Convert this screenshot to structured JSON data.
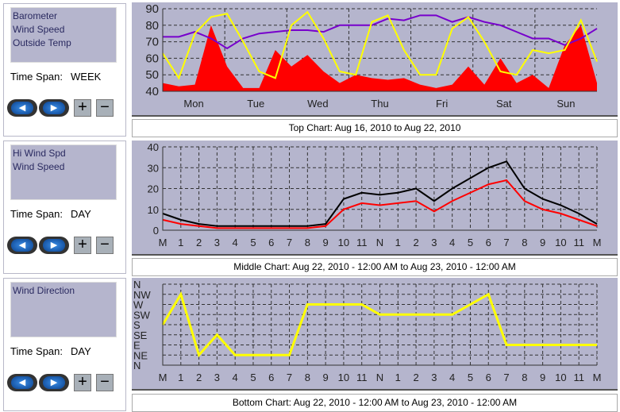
{
  "panels": [
    {
      "items": [
        "Barometer",
        "Wind Speed",
        "Outside Temp"
      ],
      "time_span_label": "Time Span:",
      "time_span": "WEEK",
      "caption": "Top Chart:  Aug 16, 2010  to  Aug 22, 2010"
    },
    {
      "items": [
        "Hi Wind Spd",
        "Wind Speed"
      ],
      "time_span_label": "Time Span:",
      "time_span": "DAY",
      "caption": "Middle Chart:  Aug 22, 2010 - 12:00 AM  to  Aug 23, 2010 - 12:00 AM"
    },
    {
      "items": [
        "Wind Direction"
      ],
      "time_span_label": "Time Span:",
      "time_span": "DAY",
      "caption": "Bottom Chart:  Aug 22, 2010 - 12:00 AM  to  Aug 23, 2010 - 12:00 AM"
    }
  ],
  "buttons": {
    "prev": "◀",
    "next": "▶",
    "plus": "+",
    "minus": "−"
  },
  "chart_data": [
    {
      "type": "line",
      "ylim": [
        40,
        90
      ],
      "yticks": [
        "90",
        "80",
        "70",
        "60",
        "50",
        "40"
      ],
      "xticks": [
        "Mon",
        "Tue",
        "Wed",
        "Thu",
        "Fri",
        "Sat",
        "Sun"
      ],
      "series": [
        {
          "name": "Outside Temp",
          "color": "#ffff00",
          "values": [
            63,
            48,
            75,
            85,
            87,
            70,
            52,
            48,
            80,
            88,
            72,
            52,
            50,
            82,
            86,
            65,
            50,
            50,
            78,
            85,
            70,
            52,
            50,
            65,
            63,
            65,
            83,
            58
          ]
        },
        {
          "name": "Barometer",
          "color": "#7700cc",
          "values": [
            73,
            73,
            76,
            72,
            66,
            72,
            75,
            76,
            77,
            77,
            76,
            80,
            80,
            80,
            84,
            83,
            86,
            86,
            82,
            85,
            82,
            80,
            76,
            72,
            72,
            68,
            72,
            78
          ]
        },
        {
          "name": "Wind Speed",
          "color": "#ff0000",
          "fill": true,
          "values": [
            45,
            43,
            44,
            80,
            55,
            42,
            42,
            65,
            55,
            62,
            52,
            45,
            50,
            48,
            47,
            48,
            44,
            42,
            44,
            55,
            44,
            60,
            45,
            50,
            42,
            68,
            80,
            45
          ]
        }
      ]
    },
    {
      "type": "line",
      "ylim": [
        0,
        40
      ],
      "yticks": [
        "40",
        "30",
        "20",
        "10",
        "0"
      ],
      "xticks": [
        "M",
        "1",
        "2",
        "3",
        "4",
        "5",
        "6",
        "7",
        "8",
        "9",
        "10",
        "11",
        "N",
        "1",
        "2",
        "3",
        "4",
        "5",
        "6",
        "7",
        "8",
        "9",
        "10",
        "11",
        "M"
      ],
      "series": [
        {
          "name": "Hi Wind Spd",
          "color": "#000000",
          "values": [
            8,
            5,
            3,
            2,
            2,
            2,
            2,
            2,
            2,
            3,
            15,
            18,
            17,
            18,
            20,
            14,
            20,
            25,
            30,
            33,
            20,
            15,
            12,
            8,
            3
          ]
        },
        {
          "name": "Wind Speed",
          "color": "#ff0000",
          "values": [
            5,
            3,
            2,
            1,
            1,
            1,
            1,
            1,
            1,
            2,
            10,
            13,
            12,
            13,
            14,
            9,
            14,
            18,
            22,
            24,
            14,
            10,
            8,
            5,
            2
          ]
        }
      ]
    },
    {
      "type": "line",
      "ylim": [
        0,
        8
      ],
      "yticks": [
        "N",
        "NW",
        "W",
        "SW",
        "S",
        "SE",
        "E",
        "NE",
        "N"
      ],
      "xticks": [
        "M",
        "1",
        "2",
        "3",
        "4",
        "5",
        "6",
        "7",
        "8",
        "9",
        "10",
        "11",
        "N",
        "1",
        "2",
        "3",
        "4",
        "5",
        "6",
        "7",
        "8",
        "9",
        "10",
        "11",
        "M"
      ],
      "series": [
        {
          "name": "Wind Direction",
          "color": "#ffff00",
          "values": [
            4,
            7,
            1,
            3,
            1,
            1,
            1,
            1,
            6,
            6,
            6,
            6,
            5,
            5,
            5,
            5,
            5,
            6,
            7,
            2,
            2,
            2,
            2,
            2,
            2
          ]
        }
      ]
    }
  ]
}
